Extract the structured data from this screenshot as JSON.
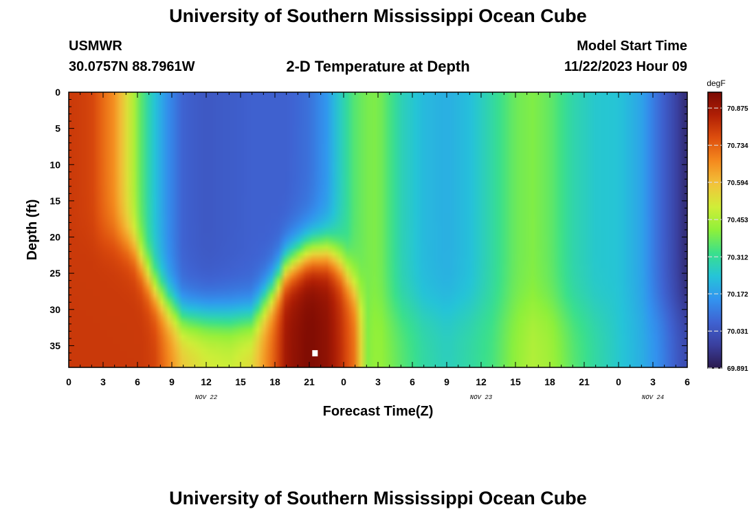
{
  "header": {
    "title": "University of Southern Mississippi Ocean Cube",
    "station": "USMWR",
    "coords": "30.0757N  88.7961W",
    "plot_title": "2-D Temperature at Depth",
    "model_label": "Model Start Time",
    "model_time": "11/22/2023 Hour 09"
  },
  "footer": {
    "title": "University of Southern Mississippi Ocean Cube"
  },
  "colors": {
    "palette": [
      "#2b1a4e",
      "#3a3f9e",
      "#3f63d2",
      "#3294f0",
      "#25c4d8",
      "#3ae08c",
      "#8ef03a",
      "#d0ee38",
      "#f2c33a",
      "#f48a1e",
      "#de4f0e",
      "#b01f05",
      "#7a0a03"
    ],
    "marker": "#ffffff"
  },
  "chart_data": {
    "type": "heatmap",
    "title": "2-D Temperature at Depth",
    "xlabel": "Forecast Time(Z)",
    "ylabel": "Depth (ft)",
    "xlim": [
      0,
      54
    ],
    "ylim": [
      38,
      0
    ],
    "x_ticks": [
      0,
      3,
      6,
      9,
      12,
      15,
      18,
      21,
      24,
      27,
      30,
      33,
      36,
      39,
      42,
      45,
      48,
      51,
      54
    ],
    "x_tick_labels": [
      "0",
      "3",
      "6",
      "9",
      "12",
      "15",
      "18",
      "21",
      "0",
      "3",
      "6",
      "9",
      "12",
      "15",
      "18",
      "21",
      "0",
      "3",
      "6"
    ],
    "y_ticks": [
      0,
      5,
      10,
      15,
      20,
      25,
      30,
      35
    ],
    "y_tick_labels": [
      "0",
      "5",
      "10",
      "15",
      "20",
      "25",
      "30",
      "35"
    ],
    "date_labels": [
      {
        "x": 12,
        "text": "NOV 22"
      },
      {
        "x": 36,
        "text": "NOV 23"
      },
      {
        "x": 51,
        "text": "NOV 24"
      }
    ],
    "colorbar": {
      "unit": "degF",
      "min": 69.891,
      "max": 70.935,
      "levels": [
        "70.875",
        "70.734",
        "70.594",
        "70.453",
        "70.312",
        "70.172",
        "70.031",
        "69.891"
      ]
    },
    "marker_point": {
      "x": 21.5,
      "y": 36
    },
    "profiles_note": "temperature (degF) by forecast hour; s = surface value, b = value below thermocline, d = thermocline depth (ft)",
    "profiles": [
      {
        "t": 0,
        "s": 70.8,
        "b": 70.8,
        "d": 20
      },
      {
        "t": 2,
        "s": 70.78,
        "b": 70.8,
        "d": 20
      },
      {
        "t": 4,
        "s": 70.66,
        "b": 70.8,
        "d": 20
      },
      {
        "t": 5.5,
        "s": 70.48,
        "b": 70.8,
        "d": 21
      },
      {
        "t": 6.5,
        "s": 70.33,
        "b": 70.8,
        "d": 24
      },
      {
        "t": 7.5,
        "s": 70.24,
        "b": 70.78,
        "d": 27
      },
      {
        "t": 8.5,
        "s": 70.15,
        "b": 70.7,
        "d": 29
      },
      {
        "t": 10,
        "s": 70.06,
        "b": 70.58,
        "d": 31
      },
      {
        "t": 12,
        "s": 70.04,
        "b": 70.52,
        "d": 31
      },
      {
        "t": 14,
        "s": 70.05,
        "b": 70.5,
        "d": 31
      },
      {
        "t": 16,
        "s": 70.06,
        "b": 70.55,
        "d": 31
      },
      {
        "t": 18,
        "s": 70.06,
        "b": 70.75,
        "d": 27
      },
      {
        "t": 19,
        "s": 70.06,
        "b": 70.88,
        "d": 24
      },
      {
        "t": 21,
        "s": 70.09,
        "b": 70.93,
        "d": 22
      },
      {
        "t": 22.5,
        "s": 70.16,
        "b": 70.9,
        "d": 22
      },
      {
        "t": 23.5,
        "s": 70.25,
        "b": 70.84,
        "d": 23
      },
      {
        "t": 25,
        "s": 70.36,
        "b": 70.7,
        "d": 27
      },
      {
        "t": 26,
        "s": 70.39,
        "b": 70.4,
        "d": 30
      },
      {
        "t": 27,
        "s": 70.4,
        "b": 70.43,
        "d": 30
      },
      {
        "t": 29,
        "s": 70.28,
        "b": 70.36,
        "d": 30
      },
      {
        "t": 31,
        "s": 70.22,
        "b": 70.3,
        "d": 30
      },
      {
        "t": 33,
        "s": 70.2,
        "b": 70.27,
        "d": 30
      },
      {
        "t": 35,
        "s": 70.23,
        "b": 70.3,
        "d": 30
      },
      {
        "t": 37,
        "s": 70.3,
        "b": 70.34,
        "d": 30
      },
      {
        "t": 39,
        "s": 70.38,
        "b": 70.42,
        "d": 30
      },
      {
        "t": 40.5,
        "s": 70.4,
        "b": 70.46,
        "d": 30
      },
      {
        "t": 42,
        "s": 70.37,
        "b": 70.44,
        "d": 30
      },
      {
        "t": 44,
        "s": 70.29,
        "b": 70.36,
        "d": 30
      },
      {
        "t": 46,
        "s": 70.25,
        "b": 70.3,
        "d": 30
      },
      {
        "t": 48,
        "s": 70.24,
        "b": 70.25,
        "d": 30
      },
      {
        "t": 50,
        "s": 70.18,
        "b": 70.2,
        "d": 30
      },
      {
        "t": 51.5,
        "s": 70.08,
        "b": 70.14,
        "d": 30
      },
      {
        "t": 53,
        "s": 69.99,
        "b": 70.05,
        "d": 30
      },
      {
        "t": 54,
        "s": 69.92,
        "b": 70.0,
        "d": 30
      }
    ]
  }
}
